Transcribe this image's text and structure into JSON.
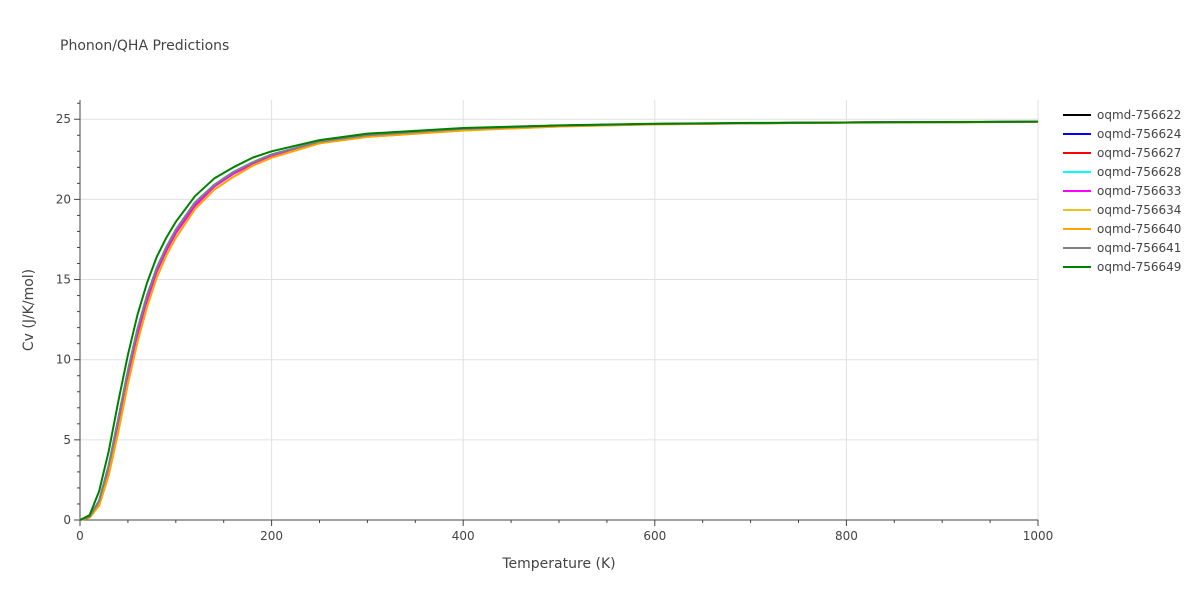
{
  "chart_data": {
    "type": "line",
    "title": "Phonon/QHA Predictions",
    "xlabel": "Temperature (K)",
    "ylabel": "Cv (J/K/mol)",
    "xlim": [
      0,
      1000
    ],
    "ylim": [
      0,
      26.2
    ],
    "xticks": [
      0,
      200,
      400,
      600,
      800,
      1000
    ],
    "yticks": [
      0,
      5,
      10,
      15,
      20,
      25
    ],
    "grid": true,
    "legend_position": "right",
    "series": [
      {
        "name": "oqmd-756622",
        "color": "#000000",
        "x": [
          0,
          10,
          20,
          30,
          40,
          50,
          60,
          70,
          80,
          90,
          100,
          120,
          140,
          160,
          180,
          200,
          250,
          300,
          400,
          500,
          600,
          700,
          800,
          900,
          1000
        ],
        "y": [
          0,
          0.2,
          1.2,
          3.4,
          6.3,
          9.3,
          11.9,
          14.0,
          15.7,
          17.0,
          18.1,
          19.8,
          20.9,
          21.7,
          22.3,
          22.8,
          23.6,
          24.0,
          24.4,
          24.6,
          24.7,
          24.75,
          24.8,
          24.82,
          24.84
        ]
      },
      {
        "name": "oqmd-756624",
        "color": "#0000ff",
        "x": [
          0,
          10,
          20,
          30,
          40,
          50,
          60,
          70,
          80,
          90,
          100,
          120,
          140,
          160,
          180,
          200,
          250,
          300,
          400,
          500,
          600,
          700,
          800,
          900,
          1000
        ],
        "y": [
          0,
          0.2,
          1.2,
          3.4,
          6.3,
          9.3,
          11.9,
          14.0,
          15.7,
          17.0,
          18.1,
          19.8,
          20.9,
          21.7,
          22.3,
          22.8,
          23.6,
          24.0,
          24.4,
          24.6,
          24.7,
          24.75,
          24.8,
          24.82,
          24.84
        ]
      },
      {
        "name": "oqmd-756627",
        "color": "#ff0000",
        "x": [
          0,
          10,
          20,
          30,
          40,
          50,
          60,
          70,
          80,
          90,
          100,
          120,
          140,
          160,
          180,
          200,
          250,
          300,
          400,
          500,
          600,
          700,
          800,
          900,
          1000
        ],
        "y": [
          0,
          0.2,
          1.1,
          3.2,
          6.0,
          9.0,
          11.6,
          13.7,
          15.5,
          16.8,
          17.9,
          19.6,
          20.8,
          21.6,
          22.2,
          22.7,
          23.5,
          24.0,
          24.4,
          24.6,
          24.7,
          24.75,
          24.8,
          24.82,
          24.84
        ]
      },
      {
        "name": "oqmd-756628",
        "color": "#00ffff",
        "x": [
          0,
          10,
          20,
          30,
          40,
          50,
          60,
          70,
          80,
          90,
          100,
          120,
          140,
          160,
          180,
          200,
          250,
          300,
          400,
          500,
          600,
          700,
          800,
          900,
          1000
        ],
        "y": [
          0,
          0.2,
          1.2,
          3.4,
          6.3,
          9.3,
          11.9,
          14.0,
          15.7,
          17.0,
          18.1,
          19.8,
          20.9,
          21.7,
          22.3,
          22.8,
          23.6,
          24.0,
          24.4,
          24.6,
          24.7,
          24.75,
          24.8,
          24.82,
          24.84
        ]
      },
      {
        "name": "oqmd-756633",
        "color": "#ff00ff",
        "x": [
          0,
          10,
          20,
          30,
          40,
          50,
          60,
          70,
          80,
          90,
          100,
          120,
          140,
          160,
          180,
          200,
          250,
          300,
          400,
          500,
          600,
          700,
          800,
          900,
          1000
        ],
        "y": [
          0,
          0.2,
          1.1,
          3.2,
          6.0,
          9.0,
          11.6,
          13.7,
          15.5,
          16.8,
          17.9,
          19.6,
          20.8,
          21.6,
          22.2,
          22.7,
          23.5,
          24.0,
          24.4,
          24.6,
          24.7,
          24.75,
          24.8,
          24.82,
          24.84
        ]
      },
      {
        "name": "oqmd-756634",
        "color": "#f0c020",
        "x": [
          0,
          10,
          20,
          30,
          40,
          50,
          60,
          70,
          80,
          90,
          100,
          120,
          140,
          160,
          180,
          200,
          250,
          300,
          400,
          500,
          600,
          700,
          800,
          900,
          1000
        ],
        "y": [
          0,
          0.15,
          0.9,
          2.8,
          5.5,
          8.5,
          11.1,
          13.3,
          15.1,
          16.5,
          17.6,
          19.4,
          20.6,
          21.4,
          22.1,
          22.6,
          23.5,
          23.9,
          24.3,
          24.55,
          24.68,
          24.74,
          24.79,
          24.81,
          24.83
        ]
      },
      {
        "name": "oqmd-756640",
        "color": "#ffa500",
        "x": [
          0,
          10,
          20,
          30,
          40,
          50,
          60,
          70,
          80,
          90,
          100,
          120,
          140,
          160,
          180,
          200,
          250,
          300,
          400,
          500,
          600,
          700,
          800,
          900,
          1000
        ],
        "y": [
          0,
          0.15,
          0.9,
          2.8,
          5.5,
          8.5,
          11.1,
          13.3,
          15.1,
          16.5,
          17.6,
          19.4,
          20.6,
          21.4,
          22.1,
          22.6,
          23.5,
          23.9,
          24.3,
          24.55,
          24.68,
          24.74,
          24.79,
          24.81,
          24.83
        ]
      },
      {
        "name": "oqmd-756641",
        "color": "#808080",
        "x": [
          0,
          10,
          20,
          30,
          40,
          50,
          60,
          70,
          80,
          90,
          100,
          120,
          140,
          160,
          180,
          200,
          250,
          300,
          400,
          500,
          600,
          700,
          800,
          900,
          1000
        ],
        "y": [
          0,
          0.2,
          1.2,
          3.4,
          6.3,
          9.3,
          11.9,
          14.0,
          15.7,
          17.0,
          18.1,
          19.8,
          20.9,
          21.7,
          22.3,
          22.8,
          23.6,
          24.0,
          24.4,
          24.6,
          24.7,
          24.75,
          24.8,
          24.82,
          24.84
        ]
      },
      {
        "name": "oqmd-756649",
        "color": "#008000",
        "x": [
          0,
          10,
          20,
          30,
          40,
          50,
          60,
          70,
          80,
          90,
          100,
          120,
          140,
          160,
          180,
          200,
          250,
          300,
          400,
          500,
          600,
          700,
          800,
          900,
          1000
        ],
        "y": [
          0,
          0.3,
          1.8,
          4.3,
          7.4,
          10.3,
          12.8,
          14.8,
          16.4,
          17.6,
          18.6,
          20.2,
          21.3,
          22.0,
          22.6,
          23.0,
          23.7,
          24.1,
          24.45,
          24.62,
          24.72,
          24.77,
          24.8,
          24.83,
          24.85
        ]
      }
    ]
  }
}
